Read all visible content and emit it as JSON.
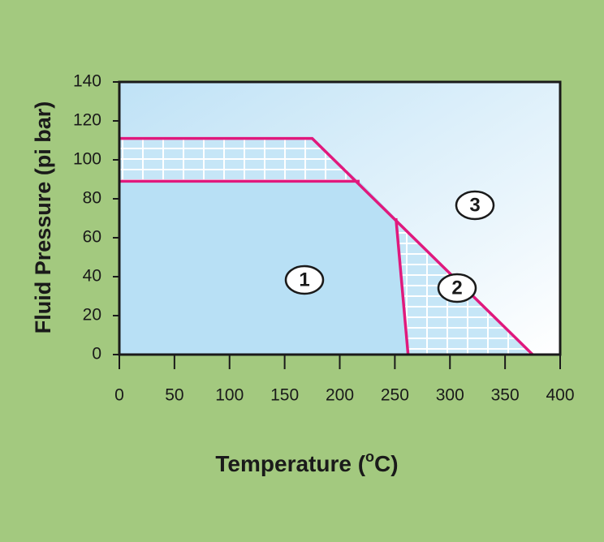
{
  "chart_data": {
    "type": "line",
    "ylabel": "Fluid Pressure (pi bar)",
    "xlabel": {
      "before": "Temperature (",
      "sup": "o",
      "after": "C)"
    },
    "xlim": [
      0,
      400
    ],
    "xticks": [
      0,
      50,
      100,
      150,
      200,
      250,
      300,
      350,
      400
    ],
    "ylim": [
      0,
      140
    ],
    "yticks": [
      0,
      20,
      40,
      60,
      80,
      100,
      120,
      140
    ],
    "line_color": "#e0197d",
    "boundaries": [
      {
        "x": [
          0,
          175,
          375
        ],
        "y": [
          111,
          111,
          0
        ]
      },
      {
        "x": [
          0,
          218
        ],
        "y": [
          89,
          89
        ]
      },
      {
        "x": [
          251,
          262
        ],
        "y": [
          70,
          0
        ]
      }
    ],
    "regions": [
      "1",
      "2",
      "3"
    ]
  }
}
